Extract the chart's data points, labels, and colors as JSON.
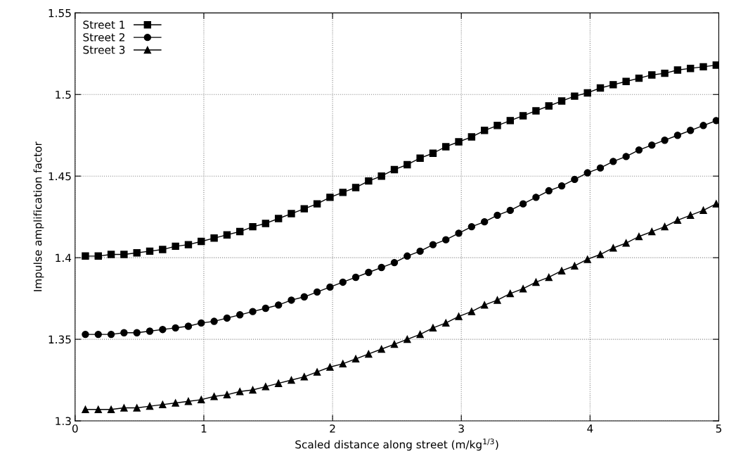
{
  "chart_data": {
    "type": "line",
    "xlabel": "Scaled distance along street (m/kg$^{1/3}$)",
    "ylabel": "Impulse amplification factor",
    "x": [
      0.08,
      0.18,
      0.28,
      0.38,
      0.48,
      0.58,
      0.68,
      0.78,
      0.88,
      0.98,
      1.08,
      1.18,
      1.28,
      1.38,
      1.48,
      1.58,
      1.68,
      1.78,
      1.88,
      1.98,
      2.08,
      2.18,
      2.28,
      2.38,
      2.48,
      2.58,
      2.68,
      2.78,
      2.88,
      2.98,
      3.08,
      3.18,
      3.28,
      3.38,
      3.48,
      3.58,
      3.68,
      3.78,
      3.88,
      3.98,
      4.08,
      4.18,
      4.28,
      4.38,
      4.48,
      4.58,
      4.68,
      4.78,
      4.88,
      4.98
    ],
    "series": [
      {
        "name": "Street 1",
        "color": "#000000",
        "marker": "square",
        "values": [
          1.401,
          1.401,
          1.402,
          1.402,
          1.403,
          1.404,
          1.405,
          1.407,
          1.408,
          1.41,
          1.412,
          1.414,
          1.416,
          1.419,
          1.421,
          1.424,
          1.427,
          1.43,
          1.433,
          1.437,
          1.44,
          1.443,
          1.447,
          1.45,
          1.454,
          1.457,
          1.461,
          1.464,
          1.468,
          1.471,
          1.474,
          1.478,
          1.481,
          1.484,
          1.487,
          1.49,
          1.493,
          1.496,
          1.499,
          1.501,
          1.504,
          1.506,
          1.508,
          1.51,
          1.512,
          1.513,
          1.515,
          1.516,
          1.517,
          1.518
        ]
      },
      {
        "name": "Street 2",
        "color": "#000000",
        "marker": "circle",
        "values": [
          1.353,
          1.353,
          1.353,
          1.354,
          1.354,
          1.355,
          1.356,
          1.357,
          1.358,
          1.36,
          1.361,
          1.363,
          1.365,
          1.367,
          1.369,
          1.371,
          1.374,
          1.376,
          1.379,
          1.382,
          1.385,
          1.388,
          1.391,
          1.394,
          1.397,
          1.401,
          1.404,
          1.408,
          1.411,
          1.415,
          1.419,
          1.422,
          1.426,
          1.429,
          1.433,
          1.437,
          1.441,
          1.444,
          1.448,
          1.452,
          1.455,
          1.459,
          1.462,
          1.466,
          1.469,
          1.472,
          1.475,
          1.478,
          1.481,
          1.484
        ]
      },
      {
        "name": "Street 3",
        "color": "#000000",
        "marker": "triangle",
        "values": [
          1.307,
          1.307,
          1.307,
          1.308,
          1.308,
          1.309,
          1.31,
          1.311,
          1.312,
          1.313,
          1.315,
          1.316,
          1.318,
          1.319,
          1.321,
          1.323,
          1.325,
          1.327,
          1.33,
          1.333,
          1.335,
          1.338,
          1.341,
          1.344,
          1.347,
          1.35,
          1.353,
          1.357,
          1.36,
          1.364,
          1.367,
          1.371,
          1.374,
          1.378,
          1.381,
          1.385,
          1.388,
          1.392,
          1.395,
          1.399,
          1.402,
          1.406,
          1.409,
          1.413,
          1.416,
          1.419,
          1.423,
          1.426,
          1.429,
          1.433
        ]
      }
    ],
    "xlim": [
      0,
      5
    ],
    "xticks": [
      0,
      1,
      2,
      3,
      4,
      5
    ],
    "ylim": [
      1.3,
      1.55
    ],
    "yticks": [
      1.3,
      1.35,
      1.4,
      1.45,
      1.5,
      1.55
    ],
    "grid": true,
    "legend": "top left",
    "line_style": "solid"
  }
}
